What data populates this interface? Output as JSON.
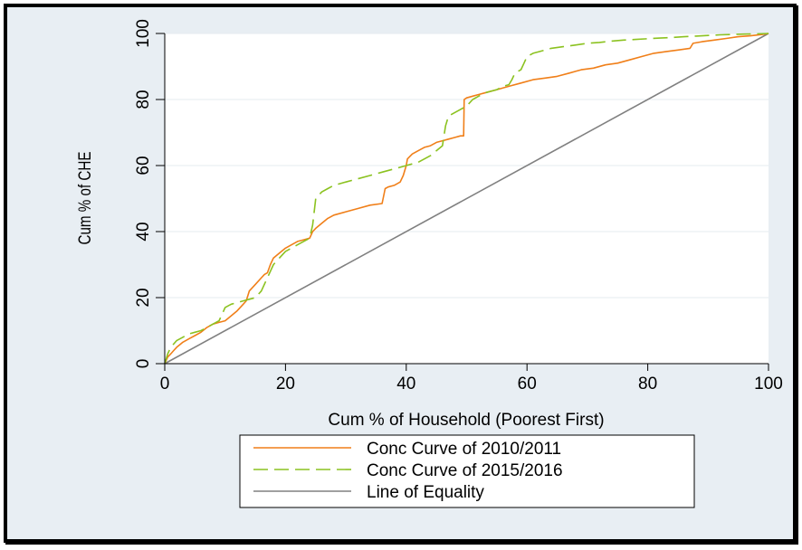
{
  "chart_data": {
    "type": "line",
    "title": "",
    "xlabel": "Cum % of Household (Poorest First)",
    "ylabel": "Cum % of CHE",
    "xlim": [
      0,
      100
    ],
    "ylim": [
      0,
      100
    ],
    "xticks": [
      0,
      20,
      40,
      60,
      80,
      100
    ],
    "yticks": [
      0,
      20,
      40,
      60,
      80,
      100
    ],
    "grid": true,
    "legend_position": "bottom",
    "series": [
      {
        "name": "Conc Curve of 2010/2011",
        "color": "#f07f19",
        "style": "solid",
        "x": [
          0,
          0.5,
          1,
          1.5,
          2,
          3,
          4,
          5,
          6,
          7,
          8,
          9,
          10,
          11,
          12,
          13,
          13.5,
          14,
          15,
          16,
          16.5,
          17,
          17.5,
          18,
          19,
          20,
          21,
          22,
          23,
          24,
          24.5,
          25,
          26,
          27,
          28,
          30,
          32,
          34,
          36,
          36.5,
          37,
          38,
          39,
          39.5,
          40,
          40.2,
          41,
          42,
          43,
          44,
          45,
          46,
          47,
          48,
          49,
          49.5,
          49.6,
          50,
          51,
          52,
          53,
          55,
          57,
          59,
          61,
          63,
          65,
          67,
          69,
          71,
          73,
          75,
          77,
          79,
          81,
          83,
          85,
          87,
          87.5,
          89,
          91,
          93,
          95,
          97,
          99,
          100
        ],
        "y": [
          0,
          2,
          3,
          4,
          5,
          6.5,
          7.5,
          8.5,
          9.5,
          11,
          12,
          12.5,
          13,
          14.5,
          16,
          18,
          19,
          22,
          24,
          26,
          27,
          27.5,
          30,
          32,
          33.5,
          35,
          36,
          37,
          37.5,
          38,
          40,
          41,
          42.5,
          44,
          45,
          46,
          47,
          48,
          48.5,
          53,
          53.5,
          54,
          55,
          57,
          60,
          62,
          63.5,
          64.5,
          65.5,
          66,
          67,
          67.5,
          68,
          68.5,
          69,
          69,
          80,
          80.5,
          81,
          81.5,
          82,
          83,
          84,
          85,
          86,
          86.5,
          87,
          88,
          89,
          89.5,
          90.5,
          91,
          92,
          93,
          94,
          94.5,
          95,
          95.5,
          97,
          97.5,
          98,
          98.5,
          99,
          99.3,
          99.7,
          100
        ]
      },
      {
        "name": "Conc Curve of 2015/2016",
        "color": "#8bc220",
        "style": "dashed",
        "x": [
          0,
          0.5,
          1,
          2,
          3,
          4,
          5,
          6,
          7,
          8,
          9,
          9.5,
          10,
          11,
          12,
          13,
          14,
          15,
          16,
          17,
          18,
          19,
          20,
          21,
          22,
          23,
          24,
          24.5,
          25,
          26,
          27,
          28,
          30,
          32,
          34,
          36,
          38,
          40,
          42,
          44,
          46,
          46.5,
          47,
          48,
          49,
          50,
          51,
          52,
          53,
          54,
          55,
          56,
          57,
          57.5,
          58,
          59,
          59.5,
          60,
          61,
          62,
          64,
          66,
          68,
          70,
          72,
          74,
          76,
          78,
          80,
          82,
          84,
          86,
          88,
          90,
          92,
          94,
          96,
          98,
          100
        ],
        "y": [
          0,
          3,
          5,
          7,
          8,
          9,
          9.5,
          10,
          11,
          12,
          13,
          15,
          17,
          18,
          18.5,
          19,
          19.5,
          20,
          22,
          26,
          30,
          32,
          34,
          35,
          36,
          37,
          38,
          42,
          50,
          52,
          53,
          54,
          55,
          56,
          57,
          58,
          59,
          60,
          61,
          63,
          66,
          72,
          75,
          76,
          77,
          78,
          80,
          81,
          82,
          82.5,
          83,
          84,
          84.5,
          86,
          88,
          89,
          91,
          93,
          94,
          94.5,
          95.5,
          96,
          96.5,
          97,
          97.3,
          97.7,
          98,
          98.2,
          98.4,
          98.6,
          98.8,
          99,
          99.2,
          99.4,
          99.6,
          99.7,
          99.8,
          99.9,
          100
        ]
      },
      {
        "name": "Line of Equality",
        "color": "#808080",
        "style": "solid",
        "x": [
          0,
          100
        ],
        "y": [
          0,
          100
        ]
      }
    ]
  }
}
